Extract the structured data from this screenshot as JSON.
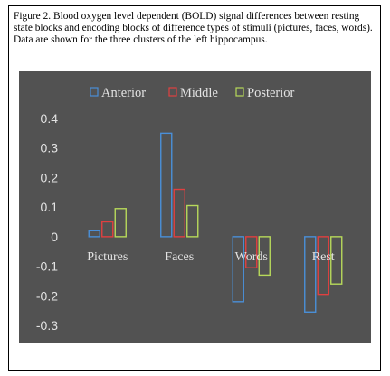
{
  "caption": "Figure 2. Blood oxygen level dependent (BOLD) signal differences between resting state blocks and encoding blocks of difference types of stimuli (pictures, faces, words). Data are shown for the three clusters of the left hippocampus.",
  "colors": {
    "background": "#525252",
    "text": "#e3e3e3",
    "anterior": "#4a8fd8",
    "middle": "#e04040",
    "posterior": "#b7d95a"
  },
  "chart_data": {
    "type": "bar",
    "categories": [
      "Pictures",
      "Faces",
      "Words",
      "Rest"
    ],
    "series": [
      {
        "name": "Anterior",
        "values": [
          0.02,
          0.35,
          -0.22,
          -0.255
        ]
      },
      {
        "name": "Middle",
        "values": [
          0.05,
          0.16,
          -0.105,
          -0.195
        ]
      },
      {
        "name": "Posterior",
        "values": [
          0.095,
          0.105,
          -0.13,
          -0.16
        ]
      }
    ],
    "yticks": [
      "0.4",
      "0.3",
      "0.2",
      "0.1",
      "0",
      "-0.1",
      "-0.2",
      "-0.3"
    ],
    "ylim": [
      -0.3,
      0.4
    ],
    "grid": false,
    "legend_position": "top",
    "bar_style": "outline"
  }
}
